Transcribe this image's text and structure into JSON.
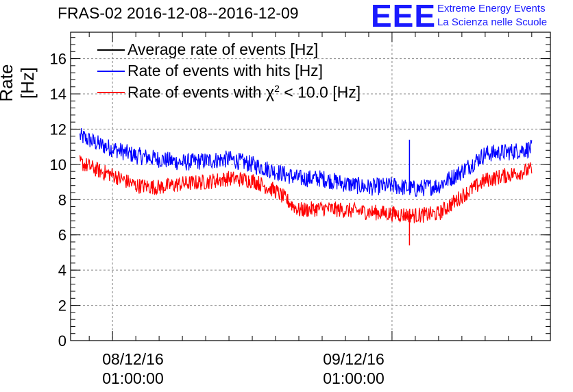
{
  "chart_data": {
    "type": "line",
    "title": "FRAS-02 2016-12-08--2016-12-09",
    "ylabel": "Rate [Hz]",
    "xlabel": "",
    "ylim": [
      0,
      17.5
    ],
    "yticks": [
      0,
      2,
      4,
      6,
      8,
      10,
      12,
      14,
      16
    ],
    "ytick_labels": [
      "0",
      "2",
      "4",
      "6",
      "8",
      "10",
      "12",
      "14",
      "16"
    ],
    "xlim_hours": [
      -3.6,
      37.6
    ],
    "xticks_hours": [
      0,
      24
    ],
    "xtick_labels": [
      {
        "date": "08/12/16",
        "time": "01:00:00"
      },
      {
        "date": "09/12/16",
        "time": "01:00:00"
      }
    ],
    "grid": true,
    "legend_position": "top-left",
    "series": [
      {
        "name": "Average rate of events [Hz]",
        "color": "#000000",
        "x_hours": [],
        "values": []
      },
      {
        "name": "Rate of events with hits [Hz]",
        "color": "#0000ff",
        "x_hours": [
          -2.8,
          -1,
          0,
          2,
          4,
          6,
          8,
          10,
          12,
          14,
          16,
          18,
          20,
          22,
          24,
          26,
          28,
          30,
          32,
          34,
          36
        ],
        "values": [
          11.6,
          11.1,
          10.9,
          10.5,
          10.3,
          10.1,
          10.2,
          10.3,
          10.0,
          9.6,
          9.2,
          9.2,
          8.9,
          8.7,
          8.8,
          8.6,
          8.8,
          9.6,
          10.6,
          10.7,
          10.9
        ],
        "noise": 0.5
      },
      {
        "name": "Rate of events with χ² < 10.0 [Hz]",
        "color": "#ff0000",
        "x_hours": [
          -2.8,
          -1,
          0,
          2,
          4,
          6,
          8,
          10,
          12,
          14,
          16,
          18,
          20,
          22,
          24,
          26,
          28,
          30,
          32,
          34,
          36
        ],
        "values": [
          10.1,
          9.6,
          9.4,
          8.8,
          8.7,
          8.9,
          9.0,
          9.2,
          9.1,
          8.5,
          7.4,
          7.5,
          7.4,
          7.3,
          7.2,
          7.1,
          7.2,
          8.2,
          9.1,
          9.4,
          9.7
        ],
        "noise": 0.45
      }
    ],
    "annotations": [
      {
        "series": "Rate of events with hits [Hz]",
        "x_hours": 25.5,
        "value": 11.4
      },
      {
        "series": "Rate of events with χ² < 10.0 [Hz]",
        "x_hours": 25.5,
        "value": 5.4
      }
    ]
  },
  "logo": {
    "mark": "EEE",
    "line1": "Extreme Energy Events",
    "line2": "La Scienza nelle Scuole",
    "color": "#1a1aff"
  },
  "legend": {
    "entries": [
      {
        "label": "Average rate of events [Hz]",
        "color": "#000000"
      },
      {
        "label": "Rate of events with hits [Hz]",
        "color": "#0000ff"
      },
      {
        "label_prefix": "Rate of events with χ",
        "label_sup": "2",
        "label_suffix": " < 10.0 [Hz]",
        "color": "#ff0000"
      }
    ]
  }
}
